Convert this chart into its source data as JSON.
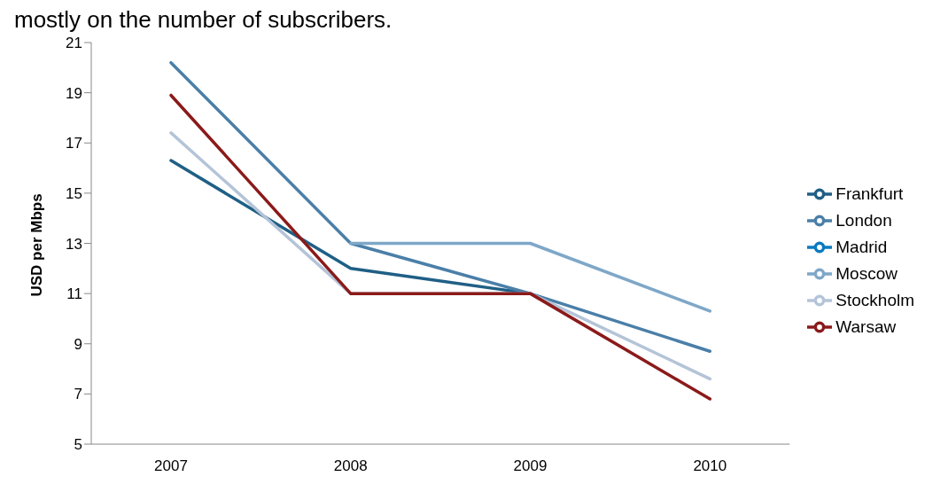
{
  "chart_data": {
    "type": "line",
    "annotations": [
      "mostly on the number of subscribers."
    ],
    "ylabel": "USD per Mbps",
    "categories": [
      "2007",
      "2008",
      "2009",
      "2010"
    ],
    "series": [
      {
        "name": "Frankfurt",
        "color": "#1f5f86",
        "values": [
          16.3,
          12.0,
          11.0,
          null
        ]
      },
      {
        "name": "London",
        "color": "#4a7fa8",
        "values": [
          20.2,
          13.0,
          11.0,
          8.7
        ]
      },
      {
        "name": "Madrid",
        "color": "#0a7ac0",
        "values": [
          null,
          null,
          null,
          null
        ]
      },
      {
        "name": "Moscow",
        "color": "#7ea7c8",
        "values": [
          null,
          13.0,
          13.0,
          10.3
        ]
      },
      {
        "name": "Stockholm",
        "color": "#b4c4d8",
        "values": [
          17.4,
          11.0,
          11.0,
          7.6
        ]
      },
      {
        "name": "Warsaw",
        "color": "#8b1a1a",
        "values": [
          18.9,
          11.0,
          11.0,
          6.8
        ]
      }
    ],
    "ylim": [
      5,
      21
    ],
    "yticks": [
      5,
      7,
      9,
      11,
      13,
      15,
      17,
      19,
      21
    ],
    "grid": false,
    "legend": "right",
    "marker": "none",
    "line_style": "solid"
  }
}
